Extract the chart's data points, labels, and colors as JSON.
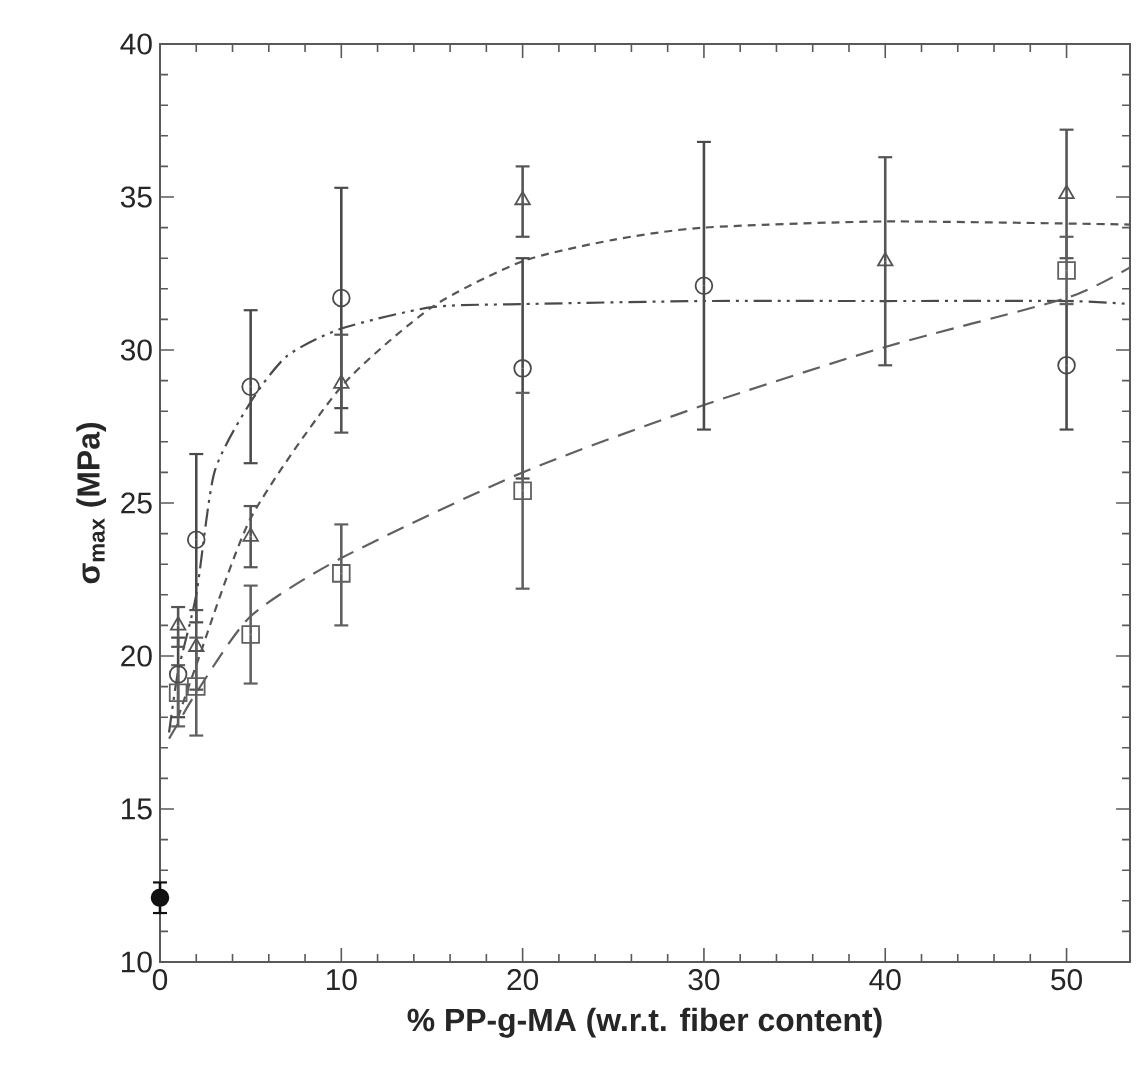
{
  "chart_data": {
    "type": "scatter",
    "xlabel": "% PP-g-MA (w.r.t. fiber content)",
    "ylabel": "σ$_{max}$ (MPa)",
    "xlim": [
      0,
      53.5
    ],
    "ylim": [
      10,
      40
    ],
    "xticks": [
      0,
      10,
      20,
      30,
      40,
      50
    ],
    "yticks": [
      10,
      15,
      20,
      25,
      30,
      35,
      40
    ],
    "grid": false,
    "series": [
      {
        "type": "line",
        "line_style": "dashdotdot",
        "marker": "none",
        "color": "#4a4a4a",
        "x": [
          0.5,
          1,
          2,
          3,
          5,
          7,
          10,
          15,
          20,
          30,
          40,
          50,
          53.5
        ],
        "values": [
          17.5,
          19.5,
          22,
          26,
          28.3,
          29.8,
          30.7,
          31.4,
          31.5,
          31.6,
          31.6,
          31.6,
          31.5
        ]
      },
      {
        "type": "line",
        "line_style": "dashed",
        "marker": "none",
        "color": "#555555",
        "x": [
          1,
          2,
          5,
          10,
          15,
          20,
          25,
          30,
          40,
          53.5
        ],
        "values": [
          18,
          19.7,
          24.5,
          28.8,
          31.4,
          32.9,
          33.6,
          34,
          34.2,
          34.1
        ]
      },
      {
        "type": "line",
        "line_style": "loosely dashed",
        "marker": "none",
        "color": "#606060",
        "x": [
          0.5,
          1,
          2,
          5,
          10,
          20,
          30,
          40,
          50,
          53.5
        ],
        "values": [
          17.3,
          17.8,
          18.8,
          21.3,
          23.2,
          26,
          28.2,
          30.1,
          31.7,
          32.7
        ]
      },
      {
        "marker": "circle",
        "color": "#4a4a4a",
        "x": [
          1,
          2,
          5,
          10,
          20,
          30,
          50
        ],
        "values": [
          19.4,
          23.8,
          28.8,
          31.7,
          29.4,
          32.1,
          29.5
        ],
        "errors": [
          [
            18,
            20.6
          ],
          [
            21.1,
            26.6
          ],
          [
            26.3,
            31.3
          ],
          [
            28.1,
            35.3
          ],
          [
            25.8,
            33
          ],
          [
            27.4,
            36.8
          ],
          [
            27.4,
            31.6
          ]
        ]
      },
      {
        "marker": "triangle",
        "color": "#555555",
        "x": [
          1,
          2,
          5,
          10,
          20,
          40,
          50
        ],
        "values": [
          21,
          20.3,
          23.9,
          28.9,
          34.9,
          32.9,
          35.1
        ],
        "errors": [
          [
            20.3,
            21.6
          ],
          [
            18.9,
            21.5
          ],
          [
            22.9,
            24.9
          ],
          [
            27.3,
            30.5
          ],
          [
            33.7,
            36
          ],
          [
            29.5,
            36.3
          ],
          [
            33,
            37.2
          ]
        ]
      },
      {
        "marker": "square",
        "color": "#606060",
        "x": [
          1,
          2,
          5,
          10,
          20,
          50
        ],
        "values": [
          18.8,
          19,
          20.7,
          22.7,
          25.4,
          32.6
        ],
        "errors": [
          [
            17.7,
            19.7
          ],
          [
            17.4,
            20.6
          ],
          [
            19.1,
            22.3
          ],
          [
            21,
            24.3
          ],
          [
            22.2,
            28.6
          ],
          [
            31.5,
            33.7
          ]
        ]
      },
      {
        "marker": "filled circle",
        "color": "#111111",
        "x": [
          0
        ],
        "values": [
          12.1
        ],
        "errors": [
          [
            11.6,
            12.6
          ]
        ]
      }
    ]
  }
}
